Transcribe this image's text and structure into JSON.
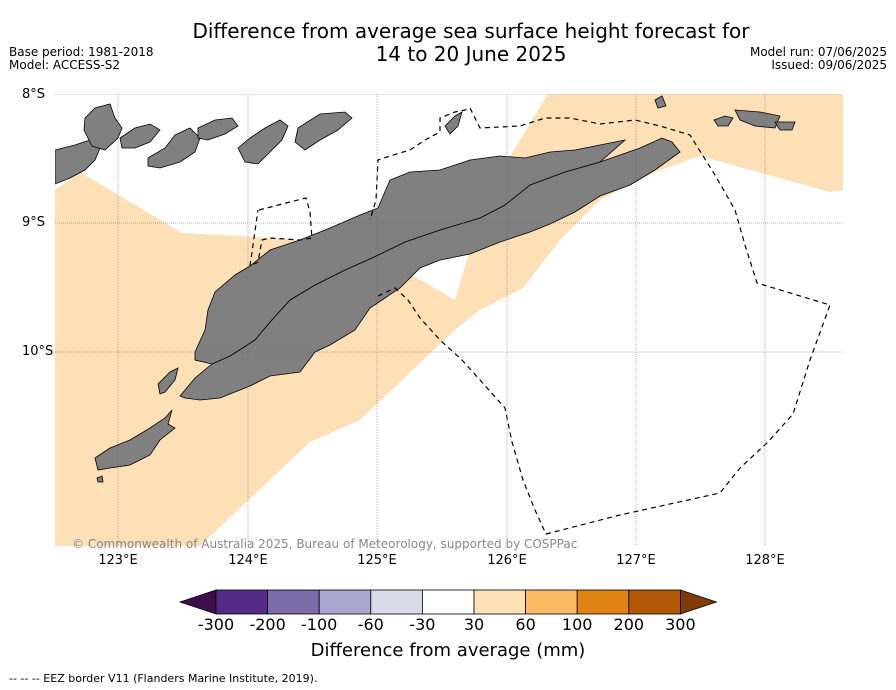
{
  "title_line1": "Difference from average sea surface height forecast for",
  "title_line2": "14 to 20 June 2025",
  "meta_left": {
    "base_period": "Base period: 1981-2018",
    "model": "Model: ACCESS-S2"
  },
  "meta_right": {
    "model_run": "Model run: 07/06/2025",
    "issued": "Issued: 09/06/2025"
  },
  "lat_labels": [
    "8°S",
    "9°S",
    "10°S"
  ],
  "lon_labels": [
    "123°E",
    "124°E",
    "125°E",
    "126°E",
    "127°E",
    "128°E"
  ],
  "copyright": "© Commonwealth of Australia 2025, Bureau of Meteorology, supported by COSPPac",
  "colorbar": {
    "title": "Difference from average (mm)",
    "ticks": [
      "-300",
      "-200",
      "-100",
      "-60",
      "-30",
      "30",
      "60",
      "100",
      "200",
      "300"
    ],
    "colors": [
      "#3b0f4f",
      "#532a85",
      "#7b6ba8",
      "#aba6cf",
      "#d9d9ea",
      "#ffffff",
      "#fee0b6",
      "#fdb863",
      "#e08214",
      "#b35806",
      "#7f3b08"
    ]
  },
  "land_color": "#808080",
  "anomaly_fill_color": "#fee0b6",
  "footnote": "--  --  -- EEZ border V11 (Flanders Marine Institute, 2019)."
}
